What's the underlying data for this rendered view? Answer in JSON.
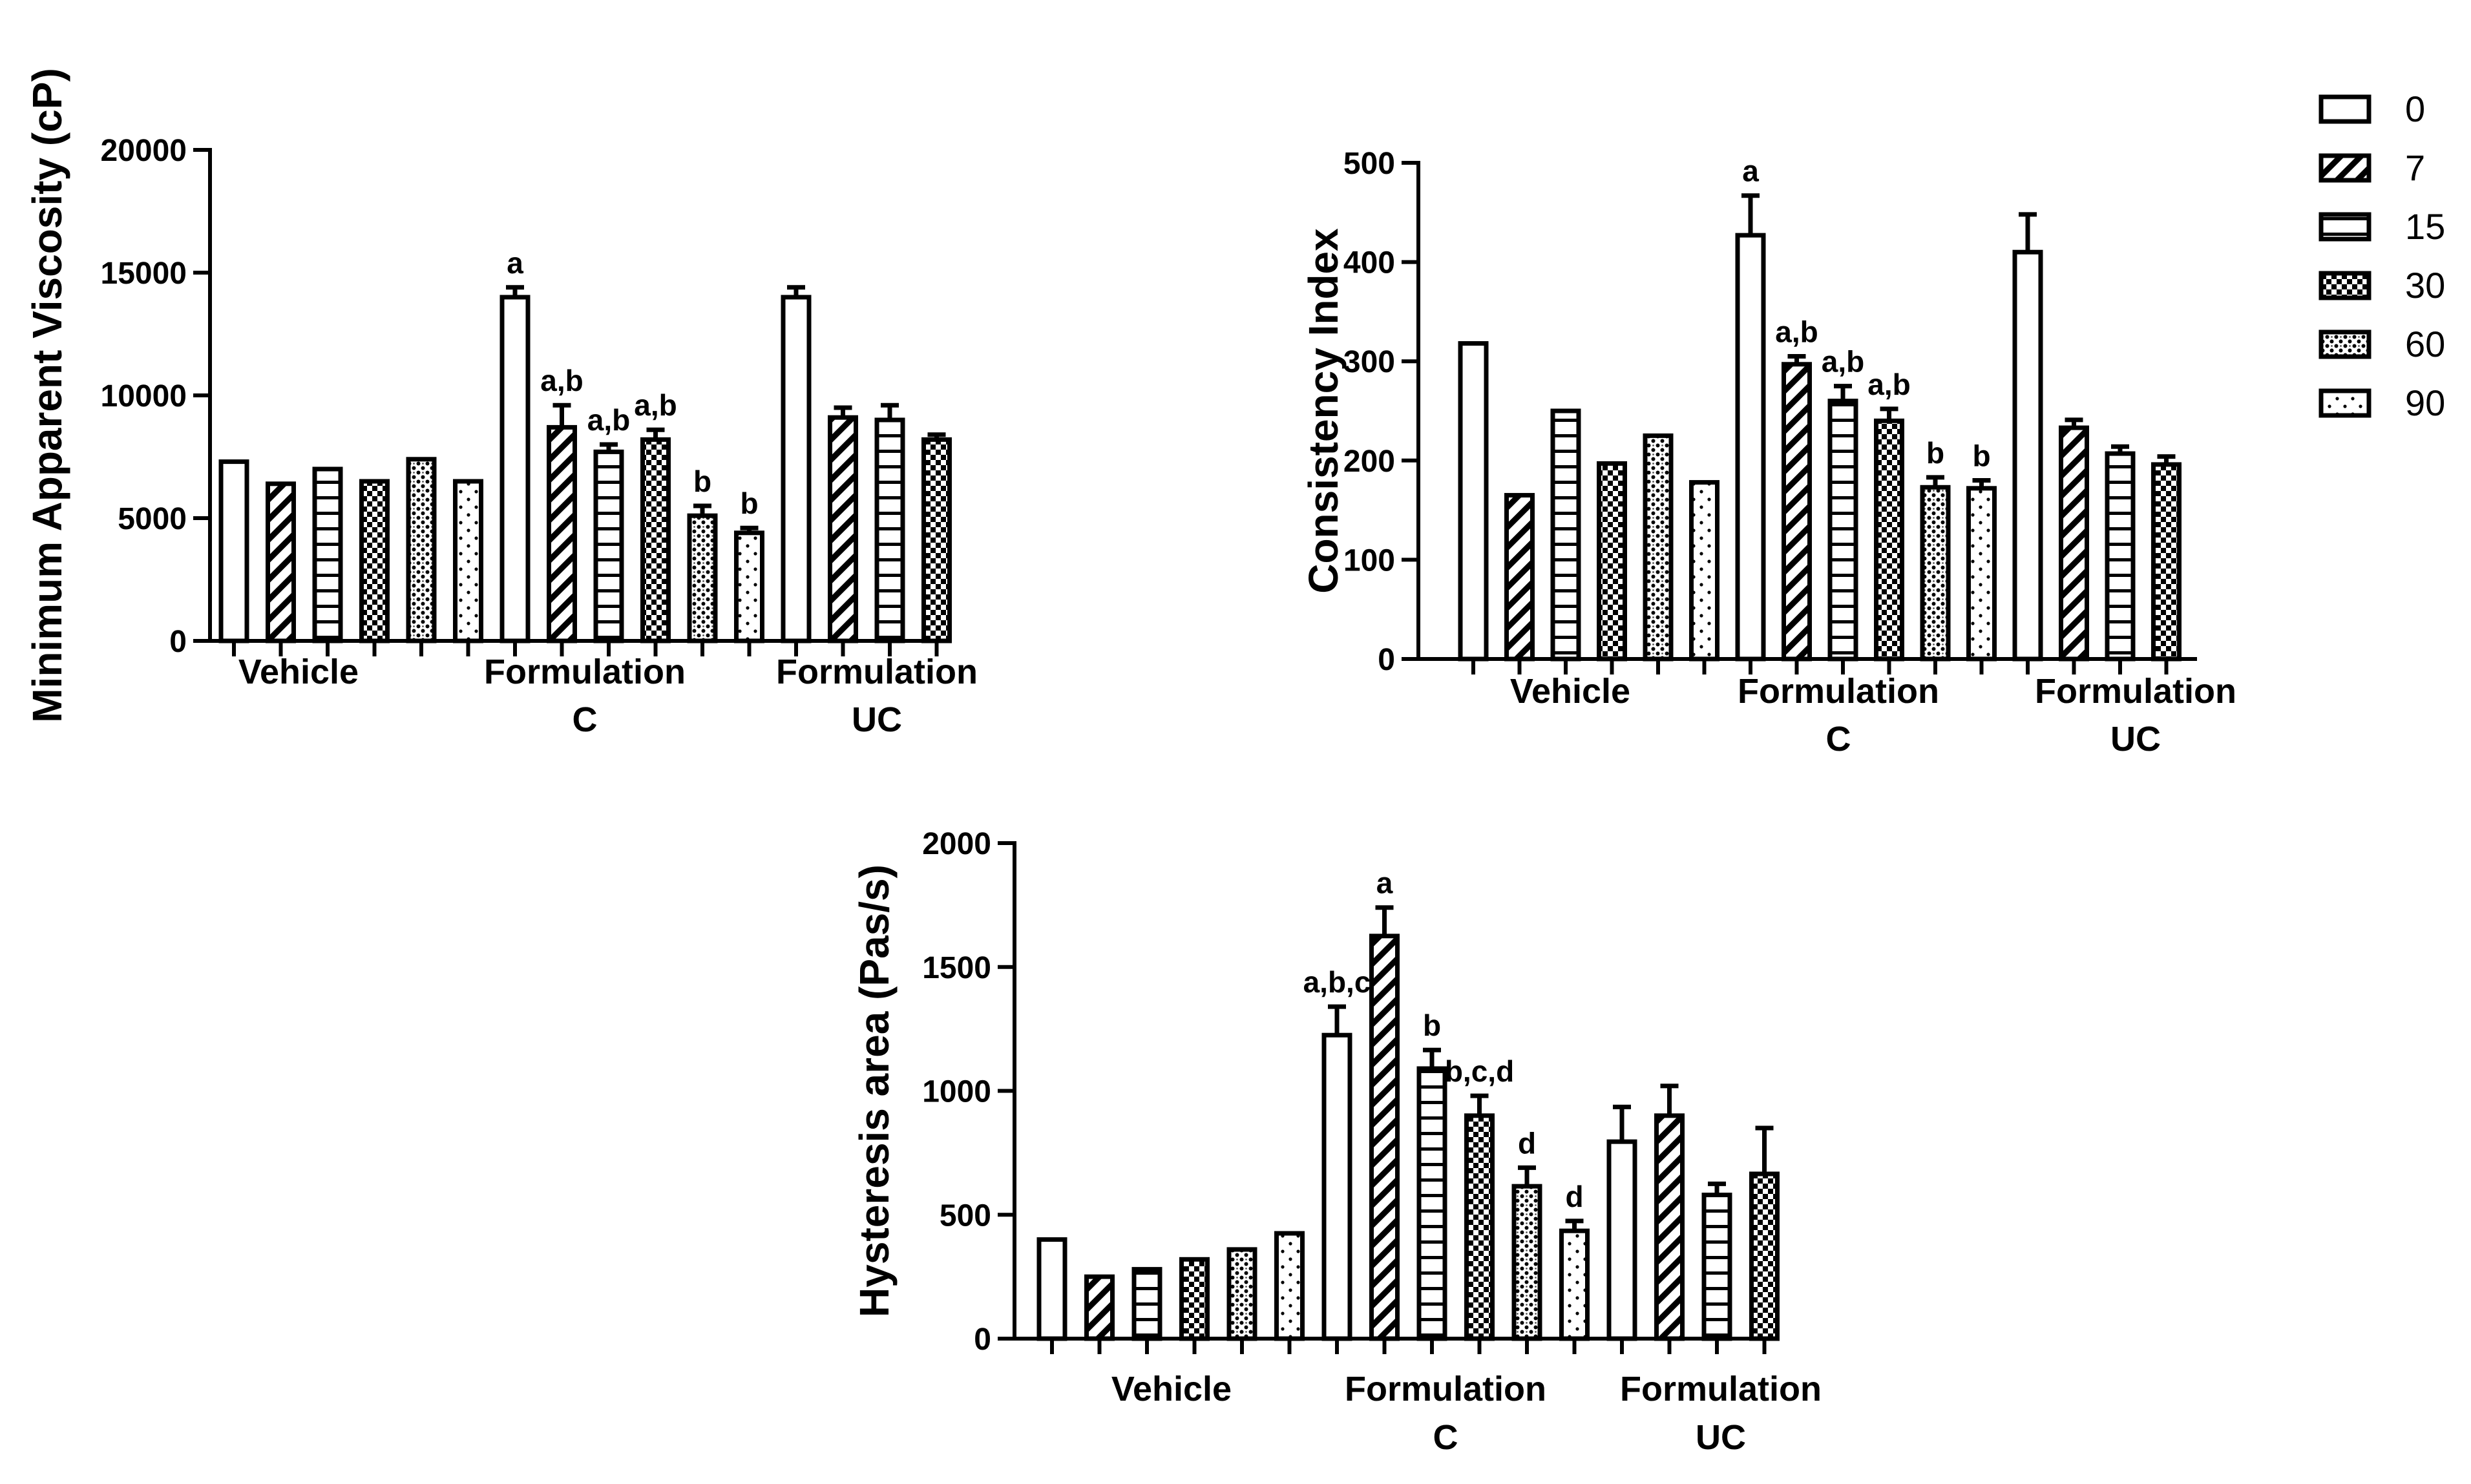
{
  "legend": {
    "title": "",
    "entries": [
      "0",
      "7",
      "15",
      "30",
      "60",
      "90"
    ],
    "patterns": [
      "open",
      "diagonal",
      "horizontal",
      "crosshatch",
      "dots",
      "sparse-dots"
    ]
  },
  "chart_data": [
    {
      "type": "bar",
      "title": "",
      "ylabel": "Minimum Apparent Viscosity (cP)",
      "xlabel": "",
      "ylim": [
        0,
        20000
      ],
      "yticks": [
        "0",
        "5000",
        "10000",
        "15000",
        "20000"
      ],
      "groups": [
        {
          "name": "Vehicle",
          "label_lines": [
            "Vehicle"
          ]
        },
        {
          "name": "Formulation C",
          "label_lines": [
            "Formulation",
            "C"
          ]
        },
        {
          "name": "Formulation UC",
          "label_lines": [
            "Formulation",
            "UC"
          ]
        }
      ],
      "bars": [
        {
          "group": "Vehicle",
          "day": "0",
          "value": 7300,
          "error": 0,
          "annotation": ""
        },
        {
          "group": "Vehicle",
          "day": "7",
          "value": 6400,
          "error": 0,
          "annotation": ""
        },
        {
          "group": "Vehicle",
          "day": "15",
          "value": 7000,
          "error": 0,
          "annotation": ""
        },
        {
          "group": "Vehicle",
          "day": "30",
          "value": 6500,
          "error": 0,
          "annotation": ""
        },
        {
          "group": "Vehicle",
          "day": "60",
          "value": 7400,
          "error": 0,
          "annotation": ""
        },
        {
          "group": "Vehicle",
          "day": "90",
          "value": 6500,
          "error": 0,
          "annotation": ""
        },
        {
          "group": "Formulation C",
          "day": "0",
          "value": 14000,
          "error": 400,
          "annotation": "a"
        },
        {
          "group": "Formulation C",
          "day": "7",
          "value": 8700,
          "error": 900,
          "annotation": "a,b"
        },
        {
          "group": "Formulation C",
          "day": "15",
          "value": 7700,
          "error": 300,
          "annotation": "a,b"
        },
        {
          "group": "Formulation C",
          "day": "30",
          "value": 8200,
          "error": 400,
          "annotation": "a,b"
        },
        {
          "group": "Formulation C",
          "day": "60",
          "value": 5100,
          "error": 400,
          "annotation": "b"
        },
        {
          "group": "Formulation C",
          "day": "90",
          "value": 4400,
          "error": 200,
          "annotation": "b"
        },
        {
          "group": "Formulation UC",
          "day": "0",
          "value": 14000,
          "error": 400,
          "annotation": ""
        },
        {
          "group": "Formulation UC",
          "day": "7",
          "value": 9100,
          "error": 400,
          "annotation": ""
        },
        {
          "group": "Formulation UC",
          "day": "15",
          "value": 9000,
          "error": 600,
          "annotation": ""
        },
        {
          "group": "Formulation UC",
          "day": "30",
          "value": 8200,
          "error": 200,
          "annotation": ""
        }
      ]
    },
    {
      "type": "bar",
      "title": "",
      "ylabel": "Consistency Index",
      "xlabel": "",
      "ylim": [
        0,
        500
      ],
      "yticks": [
        "0",
        "100",
        "200",
        "300",
        "400",
        "500"
      ],
      "groups": [
        {
          "name": "Vehicle",
          "label_lines": [
            "Vehicle"
          ]
        },
        {
          "name": "Formulation C",
          "label_lines": [
            "Formulation",
            "C"
          ]
        },
        {
          "name": "Formulation UC",
          "label_lines": [
            "Formulation",
            "UC"
          ]
        }
      ],
      "bars": [
        {
          "group": "Vehicle",
          "day": "0",
          "value": 318,
          "error": 0,
          "annotation": ""
        },
        {
          "group": "Vehicle",
          "day": "7",
          "value": 165,
          "error": 0,
          "annotation": ""
        },
        {
          "group": "Vehicle",
          "day": "15",
          "value": 250,
          "error": 0,
          "annotation": ""
        },
        {
          "group": "Vehicle",
          "day": "30",
          "value": 197,
          "error": 0,
          "annotation": ""
        },
        {
          "group": "Vehicle",
          "day": "60",
          "value": 225,
          "error": 0,
          "annotation": ""
        },
        {
          "group": "Vehicle",
          "day": "90",
          "value": 178,
          "error": 0,
          "annotation": ""
        },
        {
          "group": "Formulation C",
          "day": "0",
          "value": 427,
          "error": 40,
          "annotation": "a"
        },
        {
          "group": "Formulation C",
          "day": "7",
          "value": 297,
          "error": 8,
          "annotation": "a,b"
        },
        {
          "group": "Formulation C",
          "day": "15",
          "value": 260,
          "error": 15,
          "annotation": "a,b"
        },
        {
          "group": "Formulation C",
          "day": "30",
          "value": 240,
          "error": 12,
          "annotation": "a,b"
        },
        {
          "group": "Formulation C",
          "day": "60",
          "value": 173,
          "error": 10,
          "annotation": "b"
        },
        {
          "group": "Formulation C",
          "day": "90",
          "value": 172,
          "error": 8,
          "annotation": "b"
        },
        {
          "group": "Formulation UC",
          "day": "0",
          "value": 410,
          "error": 38,
          "annotation": ""
        },
        {
          "group": "Formulation UC",
          "day": "7",
          "value": 233,
          "error": 8,
          "annotation": ""
        },
        {
          "group": "Formulation UC",
          "day": "15",
          "value": 207,
          "error": 7,
          "annotation": ""
        },
        {
          "group": "Formulation UC",
          "day": "30",
          "value": 196,
          "error": 8,
          "annotation": ""
        }
      ]
    },
    {
      "type": "bar",
      "title": "",
      "ylabel": "Hysteresis area (Pas/s)",
      "xlabel": "",
      "ylim": [
        0,
        2000
      ],
      "yticks": [
        "0",
        "500",
        "1000",
        "1500",
        "2000"
      ],
      "groups": [
        {
          "name": "Vehicle",
          "label_lines": [
            "Vehicle"
          ]
        },
        {
          "name": "Formulation C",
          "label_lines": [
            "Formulation",
            "C"
          ]
        },
        {
          "name": "Formulation UC",
          "label_lines": [
            "Formulation",
            "UC"
          ]
        }
      ],
      "bars": [
        {
          "group": "Vehicle",
          "day": "0",
          "value": 400,
          "error": 0,
          "annotation": ""
        },
        {
          "group": "Vehicle",
          "day": "7",
          "value": 250,
          "error": 0,
          "annotation": ""
        },
        {
          "group": "Vehicle",
          "day": "15",
          "value": 280,
          "error": 0,
          "annotation": ""
        },
        {
          "group": "Vehicle",
          "day": "30",
          "value": 320,
          "error": 0,
          "annotation": ""
        },
        {
          "group": "Vehicle",
          "day": "60",
          "value": 360,
          "error": 0,
          "annotation": ""
        },
        {
          "group": "Vehicle",
          "day": "90",
          "value": 425,
          "error": 0,
          "annotation": ""
        },
        {
          "group": "Formulation C",
          "day": "0",
          "value": 1225,
          "error": 115,
          "annotation": "a,b,c"
        },
        {
          "group": "Formulation C",
          "day": "7",
          "value": 1625,
          "error": 115,
          "annotation": "a"
        },
        {
          "group": "Formulation C",
          "day": "15",
          "value": 1090,
          "error": 75,
          "annotation": "b"
        },
        {
          "group": "Formulation C",
          "day": "30",
          "value": 900,
          "error": 80,
          "annotation": "b,c,d"
        },
        {
          "group": "Formulation C",
          "day": "60",
          "value": 615,
          "error": 75,
          "annotation": "d"
        },
        {
          "group": "Formulation C",
          "day": "90",
          "value": 435,
          "error": 40,
          "annotation": "d"
        },
        {
          "group": "Formulation UC",
          "day": "0",
          "value": 795,
          "error": 140,
          "annotation": ""
        },
        {
          "group": "Formulation UC",
          "day": "7",
          "value": 900,
          "error": 120,
          "annotation": ""
        },
        {
          "group": "Formulation UC",
          "day": "15",
          "value": 580,
          "error": 45,
          "annotation": ""
        },
        {
          "group": "Formulation UC",
          "day": "30",
          "value": 665,
          "error": 185,
          "annotation": ""
        }
      ]
    }
  ]
}
